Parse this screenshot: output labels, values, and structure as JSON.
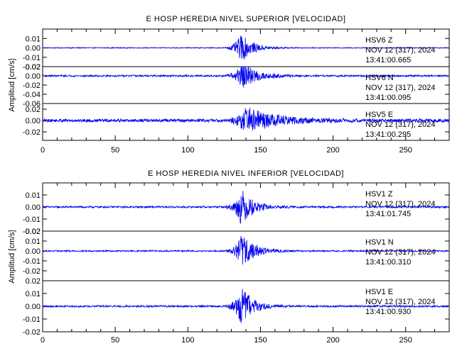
{
  "chart_data": [
    {
      "type": "line",
      "title": "E HOSP HEREDIA NIVEL SUPERIOR [VELOCIDAD]",
      "xlabel": "",
      "ylabel": "Amplitud [cm/s]",
      "xlim": [
        0,
        280
      ],
      "xticks": [
        "0",
        "50",
        "100",
        "150",
        "200",
        "250"
      ],
      "color": "#0000ee",
      "traces": [
        {
          "station": "HSV6",
          "component": "Z",
          "date": "NOV 12 (317), 2024",
          "time": "13:41:00.665",
          "ylim": [
            -0.02,
            0.02
          ],
          "yticks": [
            "0.01",
            "0.00",
            "-0.01",
            "-0.02"
          ],
          "noise_amp": 0.0005,
          "event_start": 125,
          "event_peak": 137,
          "event_amp": 0.016,
          "decay": 8
        },
        {
          "station": "HSV6",
          "component": "N",
          "date": "NOV 12 (317), 2024",
          "time": "13:41:00.095",
          "ylim": [
            -0.06,
            0.02
          ],
          "yticks": [
            "0.02",
            "0.00",
            "-0.02",
            "-0.04",
            "-0.06"
          ],
          "noise_amp": 0.002,
          "event_start": 125,
          "event_peak": 138,
          "event_amp": 0.03,
          "decay": 10
        },
        {
          "station": "HSV5",
          "component": "E",
          "date": "NOV 12 (317), 2024",
          "time": "13:41:00.295",
          "ylim": [
            -0.035,
            0.03
          ],
          "yticks": [
            "0.02",
            "0.00",
            "-0.02"
          ],
          "noise_amp": 0.003,
          "event_start": 126,
          "event_peak": 140,
          "event_amp": 0.025,
          "decay": 20
        }
      ]
    },
    {
      "type": "line",
      "title": "E HOSP HEREDIA NIVEL INFERIOR [VELOCIDAD]",
      "xlabel": "",
      "ylabel": "Amplitud [cm/s]",
      "xlim": [
        0,
        280
      ],
      "xticks": [
        "0",
        "50",
        "100",
        "150",
        "200",
        "250"
      ],
      "color": "#0000ee",
      "traces": [
        {
          "station": "HSV1",
          "component": "Z",
          "date": "NOV 12 (317), 2024",
          "time": "13:41:01.745",
          "ylim": [
            -0.02,
            0.02
          ],
          "yticks": [
            "0.01",
            "0.00",
            "-0.01",
            "-0.02"
          ],
          "noise_amp": 0.0008,
          "event_start": 125,
          "event_peak": 137,
          "event_amp": 0.016,
          "decay": 8
        },
        {
          "station": "HSV1",
          "component": "N",
          "date": "NOV 12 (317), 2024",
          "time": "13:41:00.310",
          "ylim": [
            -0.03,
            0.02
          ],
          "yticks": [
            "0.02",
            "0.01",
            "0.00",
            "-0.01",
            "-0.02"
          ],
          "noise_amp": 0.0008,
          "event_start": 125,
          "event_peak": 137,
          "event_amp": 0.018,
          "decay": 9
        },
        {
          "station": "HSV1",
          "component": "E",
          "date": "NOV 12 (317), 2024",
          "time": "13:41:00.930",
          "ylim": [
            -0.02,
            0.02
          ],
          "yticks": [
            "0.02",
            "0.01",
            "0.00",
            "-0.01",
            "-0.02"
          ],
          "noise_amp": 0.0008,
          "event_start": 125,
          "event_peak": 137,
          "event_amp": 0.016,
          "decay": 8
        }
      ]
    }
  ]
}
